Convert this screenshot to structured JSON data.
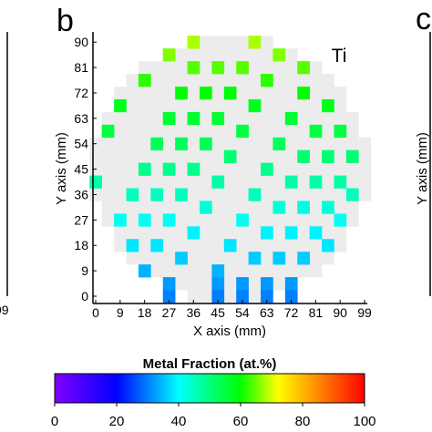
{
  "panel_label": "b",
  "next_panel_label": "c",
  "prev_panel_tick": "99",
  "next_panel_ylabel": "Y axis (mm)",
  "chart_data": {
    "type": "heatmap",
    "element_label": "Ti",
    "xlabel": "X axis (mm)",
    "ylabel": "Y axis (mm)",
    "x": [
      0,
      4.5,
      9,
      18,
      27,
      36,
      9,
      13.5,
      18,
      22.5,
      27,
      31.5,
      36,
      13.5,
      18,
      22.5,
      27,
      31.5,
      36,
      40.5,
      45,
      18,
      22.5,
      27,
      31.5,
      36,
      40.5,
      45,
      49.5,
      54,
      58.5,
      27,
      27,
      31.5,
      36,
      40.5,
      45,
      49.5,
      54,
      58.5,
      63,
      67.5,
      45,
      45,
      45,
      49.5,
      54,
      58.5,
      63,
      67.5,
      72,
      76.5,
      76.5,
      54,
      54,
      58.5,
      63,
      67.5,
      72,
      76.5,
      81,
      85.5,
      63,
      63,
      67.5,
      72,
      76.5,
      81,
      85.5,
      90,
      72,
      72,
      76.5,
      81,
      85.5,
      90,
      94.5,
      85.5,
      90,
      94.5
    ],
    "y": [
      40.5,
      58.5,
      67.5,
      76.5,
      85.5,
      90,
      27,
      36,
      45,
      54,
      63,
      72,
      81,
      18,
      27,
      36,
      45,
      54,
      63,
      72,
      81,
      9,
      18,
      27,
      36,
      45,
      54,
      63,
      72,
      81,
      90,
      0,
      4.5,
      13.5,
      22.5,
      31.5,
      40.5,
      49.5,
      58.5,
      67.5,
      76.5,
      85.5,
      0,
      4.5,
      9,
      18,
      27,
      36,
      45,
      54,
      63,
      72,
      81,
      0,
      4.5,
      13.5,
      22.5,
      31.5,
      40.5,
      49.5,
      58.5,
      67.5,
      0,
      4.5,
      13.5,
      22.5,
      31.5,
      40.5,
      49.5,
      58.5,
      0,
      4.5,
      13.5,
      22.5,
      31.5,
      40.5,
      49.5,
      18,
      27,
      36
    ],
    "values": [
      47,
      55,
      58,
      62,
      66,
      68,
      41,
      45,
      49,
      53,
      56,
      60,
      64,
      38,
      41,
      45,
      49,
      53,
      56,
      60,
      64,
      34,
      38,
      41,
      45,
      49,
      53,
      56,
      60,
      64,
      68,
      30,
      32,
      36,
      39,
      43,
      47,
      51,
      55,
      58,
      62,
      66,
      30,
      32,
      34,
      38,
      41,
      45,
      49,
      53,
      56,
      60,
      64,
      30,
      32,
      36,
      39,
      43,
      47,
      51,
      55,
      58,
      30,
      32,
      36,
      39,
      43,
      47,
      51,
      55,
      30,
      32,
      36,
      39,
      43,
      47,
      51,
      38,
      41,
      45
    ],
    "xlim": [
      0,
      99
    ],
    "xticks": [
      0,
      9,
      18,
      27,
      36,
      45,
      54,
      63,
      72,
      81,
      90,
      99
    ],
    "ylim": [
      0,
      92
    ],
    "yticks": [
      0,
      9,
      18,
      27,
      36,
      45,
      54,
      63,
      72,
      81,
      90
    ],
    "background_color": "#ececec",
    "colorbar": {
      "title": "Metal Fraction (at.%)",
      "lim": [
        0,
        100
      ],
      "ticks": [
        0,
        20,
        40,
        60,
        80,
        100
      ],
      "colors": [
        {
          "value": 0,
          "color": "#8000ff"
        },
        {
          "value": 20,
          "color": "#0000ff"
        },
        {
          "value": 40,
          "color": "#00ffff"
        },
        {
          "value": 60,
          "color": "#00ff00"
        },
        {
          "value": 72,
          "color": "#ffff00"
        },
        {
          "value": 100,
          "color": "#ff0000"
        }
      ]
    }
  }
}
